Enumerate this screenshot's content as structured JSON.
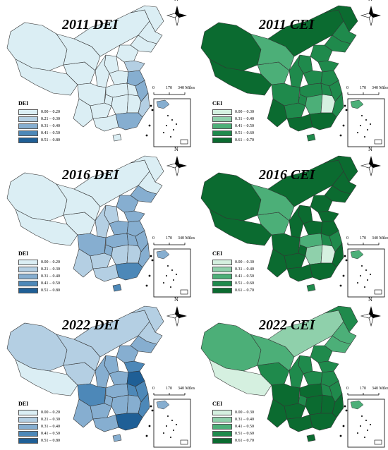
{
  "panels": [
    {
      "title": "2011 DEI",
      "index_label": "DEI",
      "palette": "blue",
      "legend": [
        "0.00 – 0.20",
        "0.21 – 0.30",
        "0.31 – 0.40",
        "0.41 – 0.50",
        "0.51 – 0.80"
      ]
    },
    {
      "title": "2011 CEI",
      "index_label": "CEI",
      "palette": "green",
      "legend": [
        "0.00 – 0.30",
        "0.31 – 0.40",
        "0.41 – 0.50",
        "0.51 – 0.60",
        "0.61 – 0.70"
      ]
    },
    {
      "title": "2016 DEI",
      "index_label": "DEI",
      "palette": "blue",
      "legend": [
        "0.00 – 0.20",
        "0.21 – 0.30",
        "0.31 – 0.40",
        "0.41 – 0.50",
        "0.51 – 0.80"
      ]
    },
    {
      "title": "2016 CEI",
      "index_label": "CEI",
      "palette": "green",
      "legend": [
        "0.00 – 0.30",
        "0.31 – 0.40",
        "0.41 – 0.50",
        "0.51 – 0.60",
        "0.61 – 0.70"
      ]
    },
    {
      "title": "2022 DEI",
      "index_label": "DEI",
      "palette": "blue",
      "legend": [
        "0.00 – 0.20",
        "0.21 – 0.30",
        "0.31 – 0.40",
        "0.41 – 0.50",
        "0.51 – 0.80"
      ]
    },
    {
      "title": "2022 CEI",
      "index_label": "CEI",
      "palette": "green",
      "legend": [
        "0.00 – 0.30",
        "0.31 – 0.40",
        "0.41 – 0.50",
        "0.51 – 0.60",
        "0.61 – 0.70"
      ]
    }
  ],
  "scale_bar": {
    "labels": [
      "0",
      "170",
      "340 Miles"
    ]
  },
  "north_arrow_label": "N",
  "colors": {
    "blue": [
      "#dbeef4",
      "#b4cfe3",
      "#86aed0",
      "#4d88b8",
      "#1f5f96"
    ],
    "green": [
      "#d5f0e0",
      "#8fd0ab",
      "#4caf78",
      "#1f8a4c",
      "#0b6b30"
    ],
    "background": "#ffffff",
    "border": "#333333"
  }
}
